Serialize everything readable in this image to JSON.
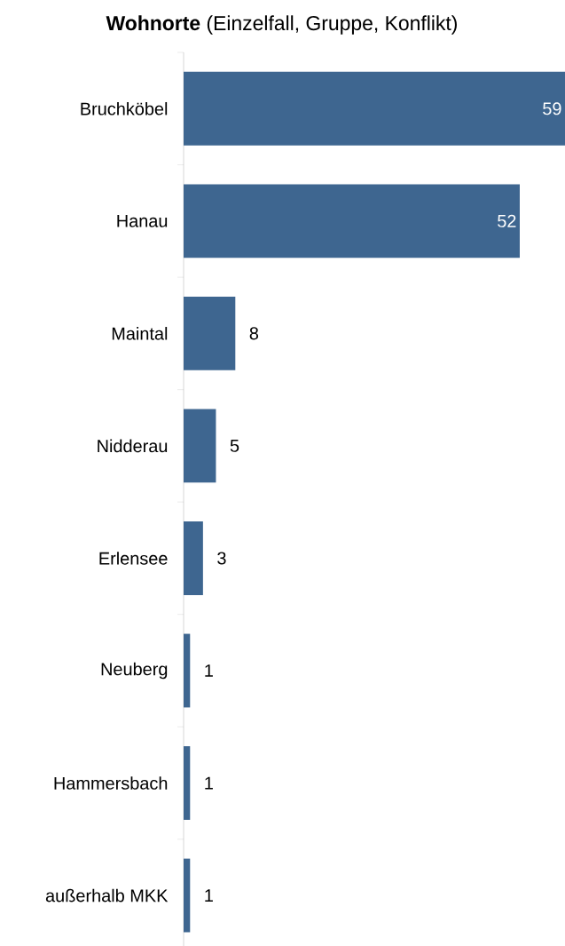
{
  "chart_data": {
    "type": "bar",
    "orientation": "horizontal",
    "title": "**Wohnorte** (Einzelfall, Gruppe, Konflikt)",
    "categories": [
      "Bruchköbel",
      "Hanau",
      "Maintal",
      "Nidderau",
      "Erlensee",
      "Neuberg",
      "Hammersbach",
      "außerhalb MKK"
    ],
    "values": [
      59,
      52,
      8,
      5,
      3,
      1,
      1,
      1
    ],
    "color": "#3e6690",
    "data_labels": true
  }
}
